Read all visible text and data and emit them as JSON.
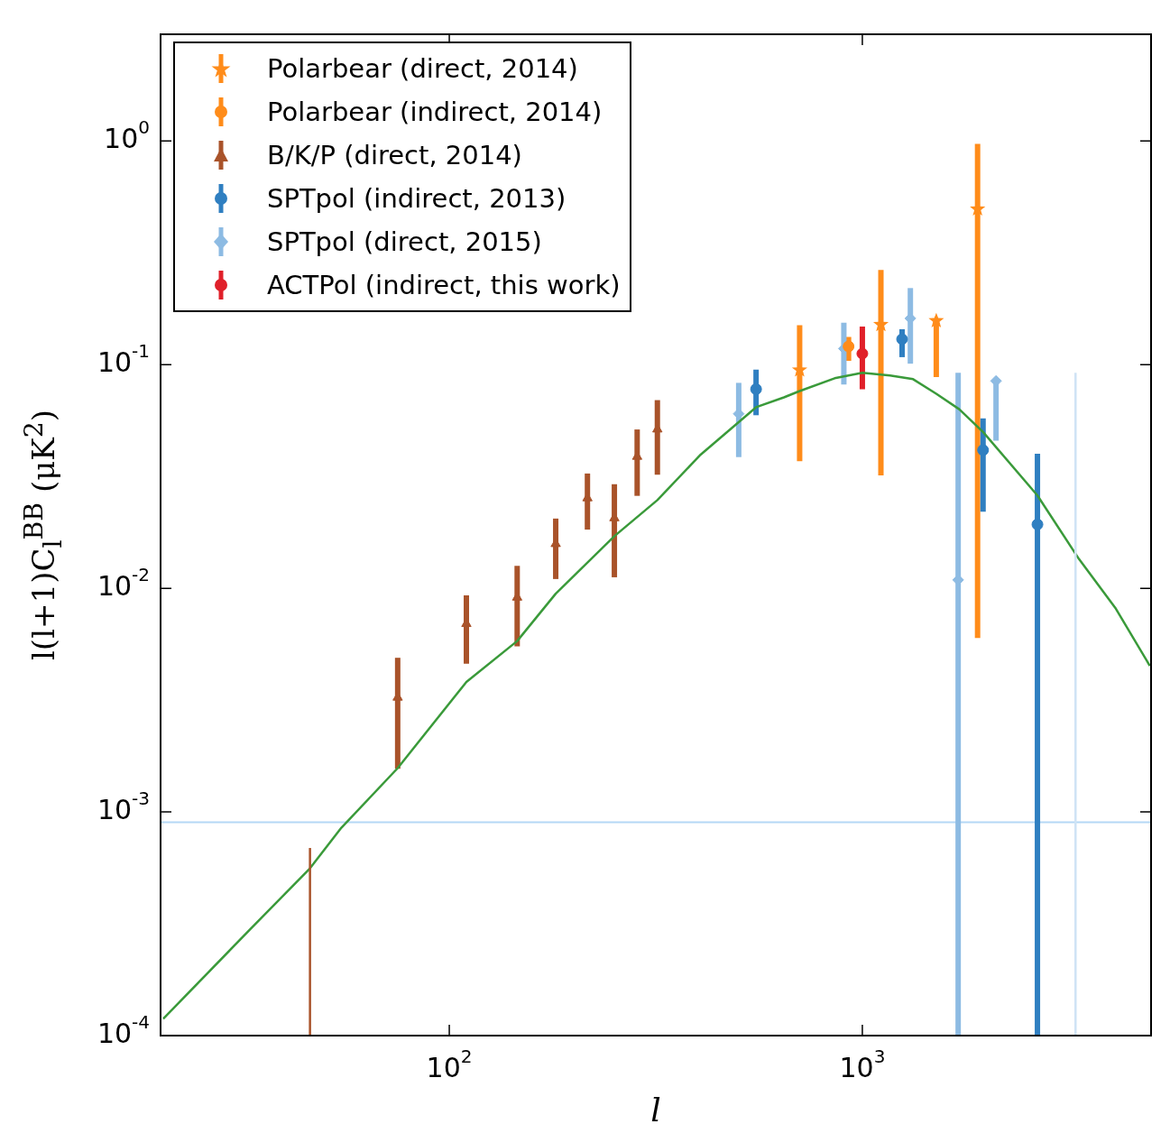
{
  "chart_data": {
    "type": "scatter",
    "xlabel": "l",
    "ylabel": "l(l+1)C$_{l}$$^{BB}$ (μK$^{2}$)",
    "log": "xy",
    "xlim": [
      20,
      5000
    ],
    "ylim": [
      0.0001,
      3
    ],
    "xticks": [
      {
        "value": 100,
        "label": "10$^{2}$"
      },
      {
        "value": 1000,
        "label": "10$^{3}$"
      }
    ],
    "yticks": [
      {
        "value": 0.0001,
        "label": "10$^{-4}$"
      },
      {
        "value": 0.001,
        "label": "10$^{-3}$"
      },
      {
        "value": 0.01,
        "label": "10$^{-2}$"
      },
      {
        "value": 0.1,
        "label": "10$^{-1}$"
      },
      {
        "value": 1,
        "label": "10$^{0}$"
      }
    ],
    "grid": false,
    "legend": "top left",
    "ref_lines": [
      {
        "axis": "y",
        "value": 0.0009,
        "color": "#b5d8f5"
      }
    ],
    "series": [
      {
        "name": "Polarbear (direct, 2014)",
        "color": "#ff8c1a",
        "marker": "star",
        "x": [
          705,
          1109,
          1510,
          1901
        ],
        "values": [
          0.0946,
          0.151,
          0.157,
          0.496
        ],
        "errors": [
          [
            0.037,
            0.15
          ],
          [
            0.032,
            0.265
          ],
          [
            0.088,
            0.157
          ],
          [
            0.006,
            0.97
          ]
        ]
      },
      {
        "name": "Polarbear (indirect, 2014)",
        "color": "#ff8c1a",
        "marker": "circle",
        "x": [
          926
        ],
        "values": [
          0.1206
        ],
        "errors": [
          [
            0.104,
            0.133
          ]
        ]
      },
      {
        "name": "B/K/P (direct, 2014)",
        "color": "#a9532a",
        "marker": "triangle",
        "x": [
          75,
          110,
          146,
          181,
          216,
          251,
          285,
          319
        ],
        "values": [
          0.00325,
          0.00694,
          0.0091,
          0.0158,
          0.0253,
          0.0206,
          0.0388,
          0.0514
        ],
        "errors": [
          [
            0.00156,
            0.00489
          ],
          [
            0.0046,
            0.0093
          ],
          [
            0.0055,
            0.0126
          ],
          [
            0.011,
            0.0205
          ],
          [
            0.0183,
            0.0326
          ],
          [
            0.0112,
            0.0292
          ],
          [
            0.0259,
            0.0513
          ],
          [
            0.0322,
            0.0694
          ]
        ]
      },
      {
        "name": "SPTpol (indirect, 2013)",
        "color": "#2f7fc1",
        "marker": "circle",
        "x": [
          553,
          1248,
          1960,
          2654
        ],
        "values": [
          0.0777,
          0.13,
          0.0415,
          0.0193
        ],
        "errors": [
          [
            0.0594,
            0.095
          ],
          [
            0.108,
            0.144
          ],
          [
            0.022,
            0.0575
          ],
          [
            0.0001,
            0.04
          ]
        ]
      },
      {
        "name": "SPTpol (direct, 2015)",
        "color": "#8dbbe3",
        "marker": "diamond",
        "x": [
          502,
          902,
          1307,
          1706,
          2107
        ],
        "values": [
          0.0603,
          0.118,
          0.161,
          0.0109,
          0.0845
        ],
        "errors": [
          [
            0.0386,
            0.0829
          ],
          [
            0.0815,
            0.154
          ],
          [
            0.101,
            0.22
          ],
          [
            0.0001,
            0.092
          ],
          [
            0.0457,
            0.0845
          ]
        ]
      },
      {
        "type": "line",
        "color": "#a9532a",
        "x": [
          46,
          46
        ],
        "values": [
          0.0001,
          0.00069
        ]
      },
      {
        "type": "line",
        "color": "#cfe3f5",
        "x": [
          3282,
          3282
        ],
        "values": [
          0.0001,
          0.092
        ]
      },
      {
        "name": "ACTPol (indirect, this work)",
        "color": "#e0202a",
        "marker": "circle",
        "x": [
          1000
        ],
        "values": [
          0.112
        ],
        "errors": [
          [
            0.0776,
            0.148
          ]
        ]
      },
      {
        "type": "line",
        "color": "#3a9a3a",
        "x": [
          20.3,
          32.8,
          46,
          54.8,
          75,
          110,
          146,
          181,
          251,
          319,
          406,
          553,
          646,
          705,
          857,
          1000,
          1167,
          1327,
          1510,
          1716,
          1960,
          2654,
          3347,
          4110,
          4966
        ],
        "values": [
          0.000119,
          0.000296,
          0.00056,
          0.00085,
          0.00157,
          0.00381,
          0.00581,
          0.00946,
          0.0171,
          0.0248,
          0.0396,
          0.0645,
          0.0714,
          0.0762,
          0.0869,
          0.0919,
          0.0894,
          0.0861,
          0.0741,
          0.0632,
          0.05,
          0.026,
          0.0135,
          0.0081,
          0.0045
        ]
      }
    ]
  }
}
